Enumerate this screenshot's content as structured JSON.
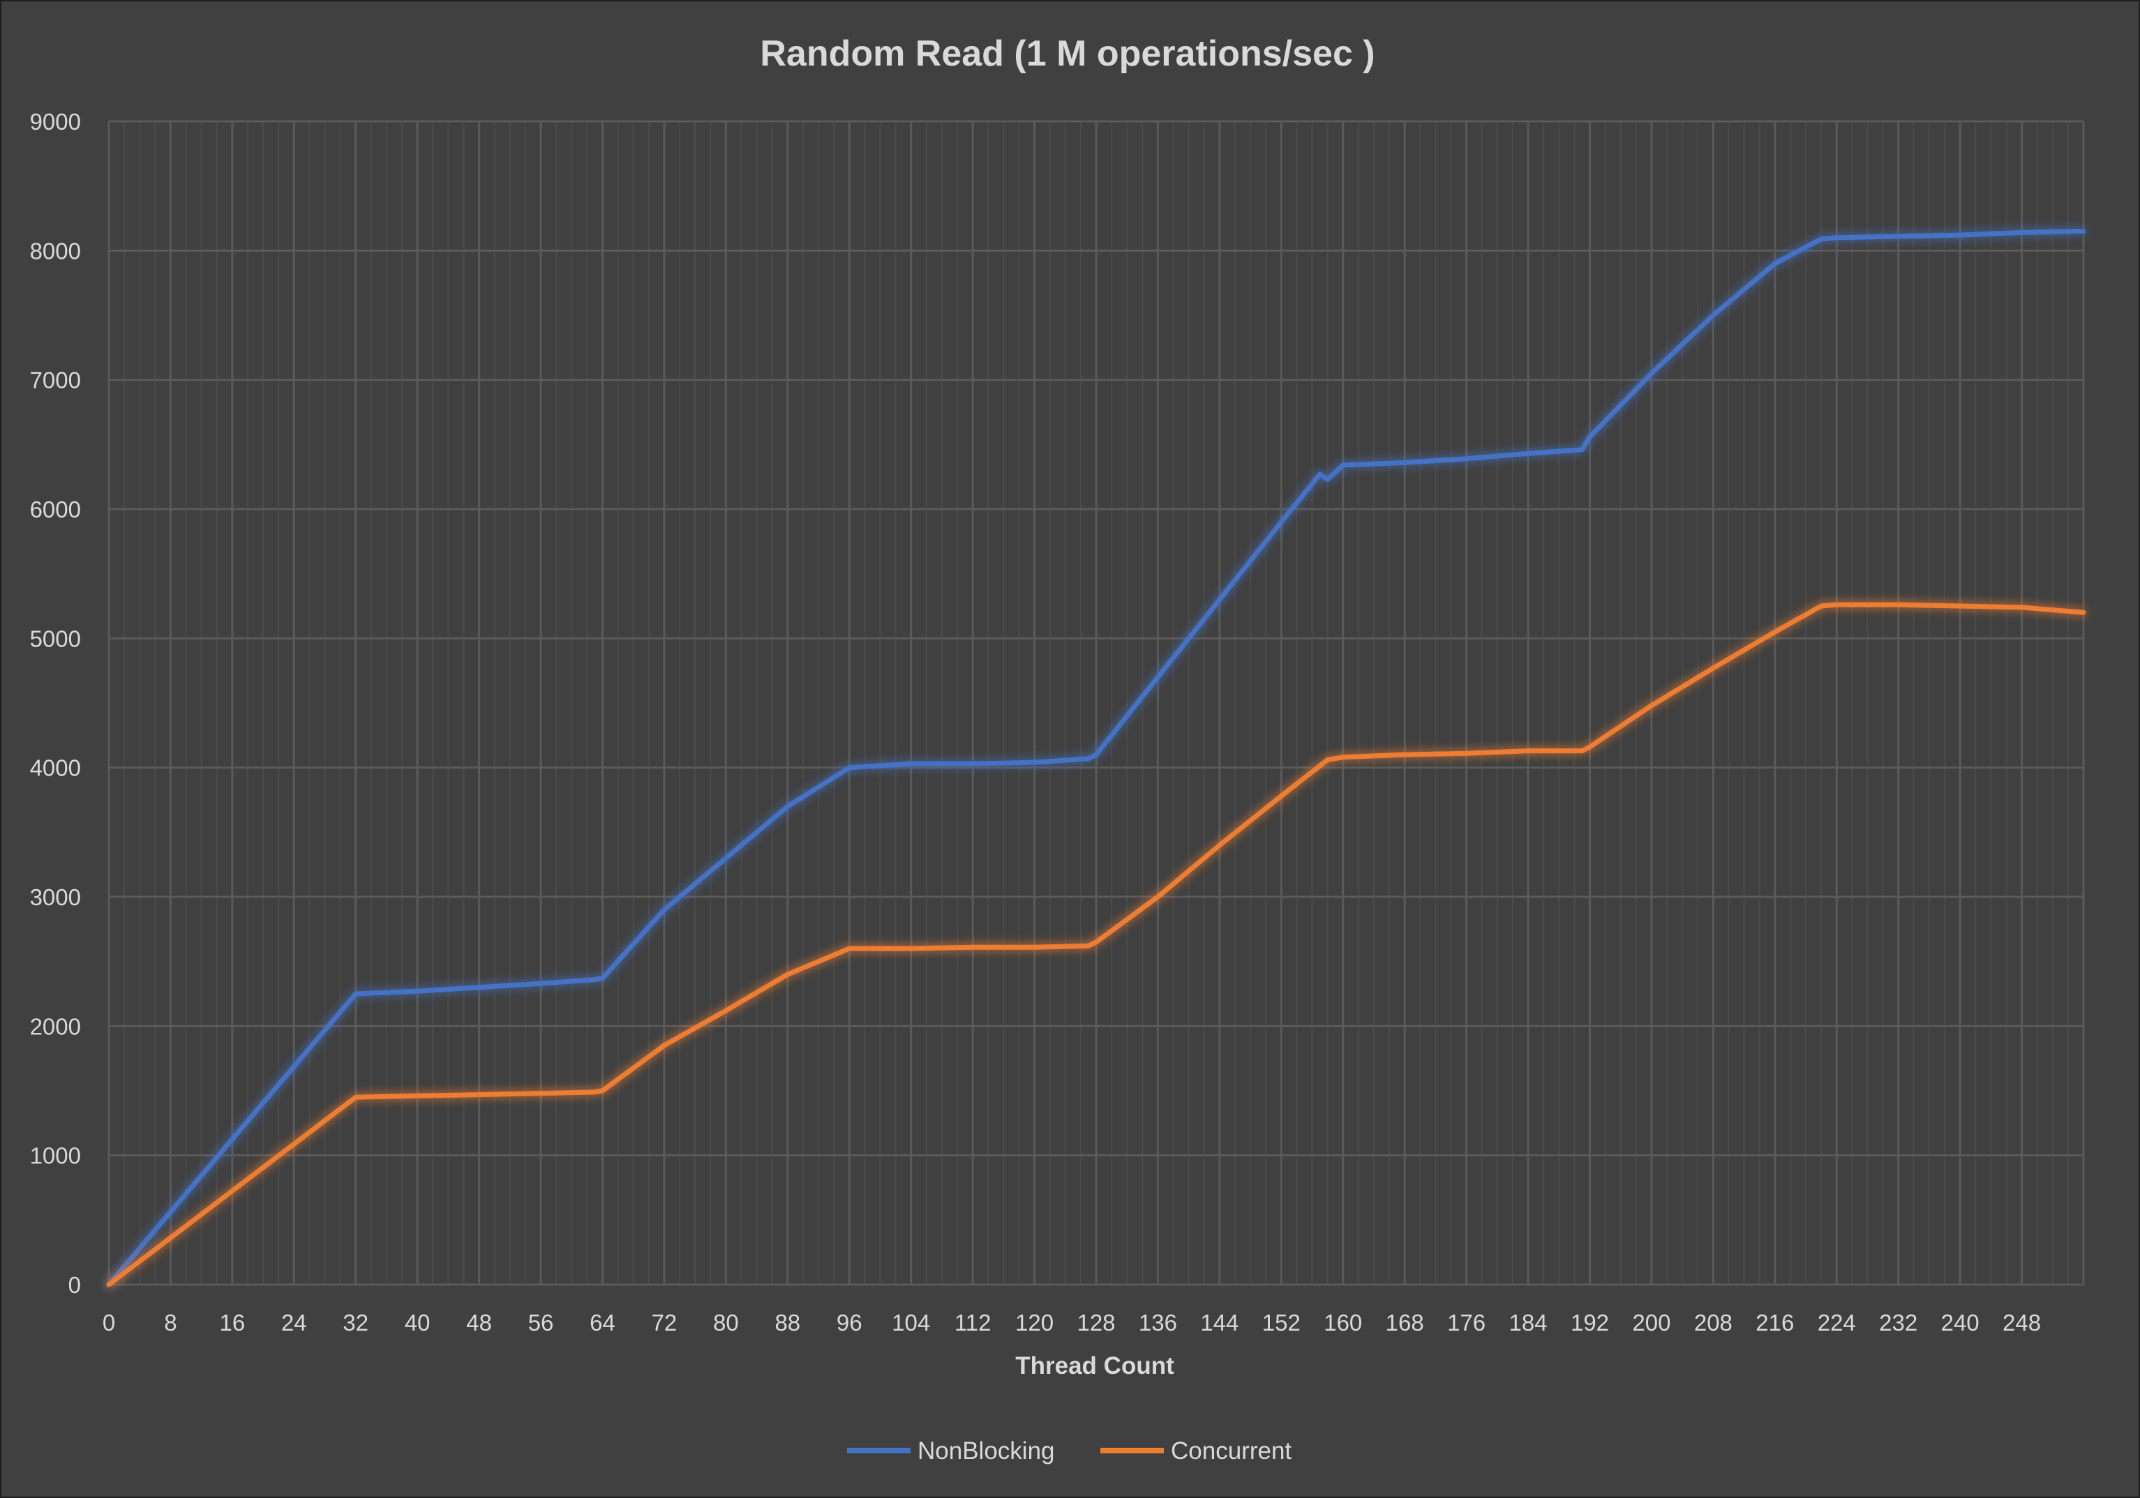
{
  "chart_data": {
    "type": "line",
    "title": "Random Read  (1 M operations/sec )",
    "xlabel": "Thread Count",
    "ylabel": "",
    "xlim": [
      0,
      256
    ],
    "ylim": [
      0,
      9000
    ],
    "x_ticks": [
      0,
      8,
      16,
      24,
      32,
      40,
      48,
      56,
      64,
      72,
      80,
      88,
      96,
      104,
      112,
      120,
      128,
      136,
      144,
      152,
      160,
      168,
      176,
      184,
      192,
      200,
      208,
      216,
      224,
      232,
      240,
      248
    ],
    "y_ticks": [
      0,
      1000,
      2000,
      3000,
      4000,
      5000,
      6000,
      7000,
      8000,
      9000
    ],
    "grid": true,
    "legend_position": "bottom",
    "series": [
      {
        "name": "NonBlocking",
        "color": "#4472c4",
        "points": [
          [
            0,
            0
          ],
          [
            32,
            2250
          ],
          [
            40,
            2270
          ],
          [
            48,
            2300
          ],
          [
            56,
            2330
          ],
          [
            63,
            2360
          ],
          [
            64,
            2370
          ],
          [
            72,
            2900
          ],
          [
            80,
            3300
          ],
          [
            88,
            3700
          ],
          [
            96,
            4000
          ],
          [
            104,
            4030
          ],
          [
            112,
            4030
          ],
          [
            120,
            4040
          ],
          [
            127,
            4070
          ],
          [
            128,
            4100
          ],
          [
            136,
            4700
          ],
          [
            144,
            5300
          ],
          [
            152,
            5900
          ],
          [
            157,
            6270
          ],
          [
            158,
            6230
          ],
          [
            160,
            6340
          ],
          [
            168,
            6360
          ],
          [
            176,
            6390
          ],
          [
            184,
            6430
          ],
          [
            191,
            6460
          ],
          [
            192,
            6560
          ],
          [
            200,
            7050
          ],
          [
            208,
            7500
          ],
          [
            216,
            7900
          ],
          [
            222,
            8090
          ],
          [
            224,
            8100
          ],
          [
            232,
            8110
          ],
          [
            240,
            8120
          ],
          [
            248,
            8140
          ],
          [
            256,
            8150
          ]
        ]
      },
      {
        "name": "Concurrent",
        "color": "#ed7d31",
        "points": [
          [
            0,
            0
          ],
          [
            32,
            1450
          ],
          [
            40,
            1460
          ],
          [
            48,
            1470
          ],
          [
            56,
            1480
          ],
          [
            63,
            1490
          ],
          [
            64,
            1500
          ],
          [
            72,
            1850
          ],
          [
            80,
            2120
          ],
          [
            88,
            2400
          ],
          [
            96,
            2600
          ],
          [
            104,
            2600
          ],
          [
            112,
            2610
          ],
          [
            120,
            2610
          ],
          [
            127,
            2620
          ],
          [
            128,
            2650
          ],
          [
            136,
            3000
          ],
          [
            144,
            3400
          ],
          [
            152,
            3780
          ],
          [
            158,
            4060
          ],
          [
            160,
            4080
          ],
          [
            168,
            4100
          ],
          [
            176,
            4110
          ],
          [
            184,
            4130
          ],
          [
            191,
            4130
          ],
          [
            192,
            4160
          ],
          [
            200,
            4480
          ],
          [
            208,
            4770
          ],
          [
            216,
            5050
          ],
          [
            222,
            5250
          ],
          [
            224,
            5260
          ],
          [
            232,
            5260
          ],
          [
            240,
            5250
          ],
          [
            248,
            5240
          ],
          [
            256,
            5200
          ]
        ]
      }
    ]
  }
}
